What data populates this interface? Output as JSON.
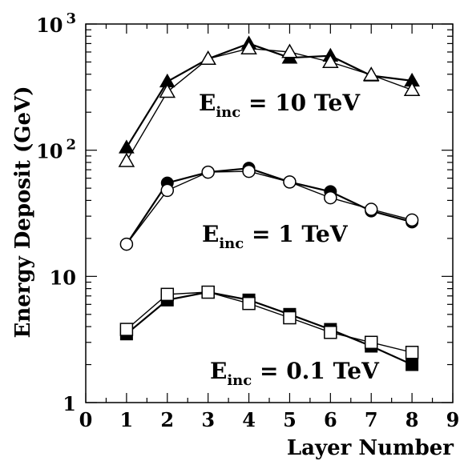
{
  "chart_data": {
    "type": "line",
    "xlabel": "Layer Number",
    "ylabel": "Energy Deposit (GeV)",
    "xlim": [
      0,
      9
    ],
    "ylim": [
      1,
      1000
    ],
    "y_scale": "log",
    "grid": false,
    "x_ticks": [
      "0",
      "1",
      "2",
      "3",
      "4",
      "5",
      "6",
      "7",
      "8",
      "9"
    ],
    "y_ticks": [
      {
        "value": 1,
        "base": "1",
        "exp": ""
      },
      {
        "value": 10,
        "base": "10",
        "exp": ""
      },
      {
        "value": 100,
        "base": "10",
        "exp": "2"
      },
      {
        "value": 1000,
        "base": "10",
        "exp": "3"
      }
    ],
    "x": [
      1,
      2,
      3,
      4,
      5,
      6,
      7,
      8
    ],
    "series": [
      {
        "marker": "filled-triangle",
        "values": [
          105,
          350,
          530,
          700,
          540,
          560,
          390,
          355
        ]
      },
      {
        "marker": "open-triangle",
        "values": [
          82,
          290,
          530,
          640,
          600,
          500,
          395,
          300
        ]
      },
      {
        "marker": "filled-circle",
        "values": [
          18,
          55,
          67,
          72,
          56,
          47,
          33,
          27
        ]
      },
      {
        "marker": "open-circle",
        "values": [
          18,
          48,
          67,
          68,
          56,
          42,
          34,
          28
        ]
      },
      {
        "marker": "filled-square",
        "values": [
          3.5,
          6.5,
          7.5,
          6.5,
          5.0,
          3.8,
          2.8,
          2.0
        ]
      },
      {
        "marker": "open-square",
        "values": [
          3.8,
          7.2,
          7.5,
          6.1,
          4.7,
          3.6,
          3.0,
          2.5
        ]
      }
    ],
    "annotations": [
      {
        "id": "ann-10tev",
        "main": "E",
        "sub": "inc",
        "rest": " = 10 TeV"
      },
      {
        "id": "ann-1tev",
        "main": "E",
        "sub": "inc",
        "rest": " = 1 TeV"
      },
      {
        "id": "ann-01tev",
        "main": "E",
        "sub": "inc",
        "rest": " = 0.1 TeV"
      }
    ]
  }
}
